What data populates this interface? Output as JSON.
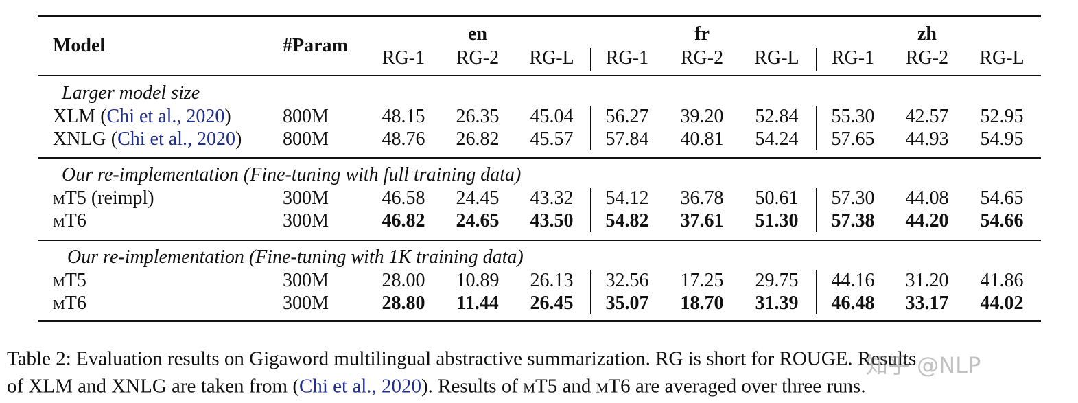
{
  "table": {
    "header": {
      "model": "Model",
      "param": "#Param",
      "languages": [
        "en",
        "fr",
        "zh"
      ],
      "metrics": [
        "RG-1",
        "RG-2",
        "RG-L"
      ]
    },
    "sections": [
      {
        "title": "Larger model size",
        "rows": [
          {
            "model": [
              {
                "text": "XLM ("
              },
              {
                "text": "Chi et al., 2020",
                "link": true
              },
              {
                "text": ")"
              }
            ],
            "param": "800M",
            "bold": false,
            "values": [
              "48.15",
              "26.35",
              "45.04",
              "56.27",
              "39.20",
              "52.84",
              "55.30",
              "42.57",
              "52.95"
            ]
          },
          {
            "model": [
              {
                "text": "XNLG ("
              },
              {
                "text": "Chi et al., 2020",
                "link": true
              },
              {
                "text": ")"
              }
            ],
            "param": "800M",
            "bold": false,
            "values": [
              "48.76",
              "26.82",
              "45.57",
              "57.84",
              "40.81",
              "54.24",
              "57.65",
              "44.93",
              "54.95"
            ]
          }
        ]
      },
      {
        "title": "Our re-implementation (Fine-tuning with full training data)",
        "rows": [
          {
            "model": [
              {
                "text": "mT5",
                "smallcaps": true
              },
              {
                "text": " (reimpl)"
              }
            ],
            "param": "300M",
            "bold": false,
            "values": [
              "46.58",
              "24.45",
              "43.32",
              "54.12",
              "36.78",
              "50.61",
              "57.30",
              "44.08",
              "54.65"
            ]
          },
          {
            "model": [
              {
                "text": "mT6",
                "smallcaps": true
              }
            ],
            "param": "300M",
            "bold": true,
            "values": [
              "46.82",
              "24.65",
              "43.50",
              "54.82",
              "37.61",
              "51.30",
              "57.38",
              "44.20",
              "54.66"
            ]
          }
        ]
      },
      {
        "title": "Our re-implementation (Fine-tuning with 1K training data)",
        "rows": [
          {
            "model": [
              {
                "text": "mT5",
                "smallcaps": true
              }
            ],
            "param": "300M",
            "bold": false,
            "values": [
              "28.00",
              "10.89",
              "26.13",
              "32.56",
              "17.25",
              "29.75",
              "44.16",
              "31.20",
              "41.86"
            ]
          },
          {
            "model": [
              {
                "text": "mT6",
                "smallcaps": true
              }
            ],
            "param": "300M",
            "bold": true,
            "values": [
              "28.80",
              "11.44",
              "26.45",
              "35.07",
              "18.70",
              "31.39",
              "46.48",
              "33.17",
              "44.02"
            ]
          }
        ]
      }
    ]
  },
  "caption": {
    "lines": [
      [
        {
          "text": "Table 2: Evaluation results on Gigaword multilingual abstractive summarization. RG is short for ROUGE. Results"
        }
      ],
      [
        {
          "text": "of XLM and XNLG are taken from ("
        },
        {
          "text": "Chi et al., 2020",
          "link": true
        },
        {
          "text": "). Results of "
        },
        {
          "text": "mT5",
          "smallcaps": true
        },
        {
          "text": " and "
        },
        {
          "text": "mT6",
          "smallcaps": true
        },
        {
          "text": " are averaged over three runs."
        }
      ]
    ]
  },
  "watermark": "知乎 @NLP"
}
